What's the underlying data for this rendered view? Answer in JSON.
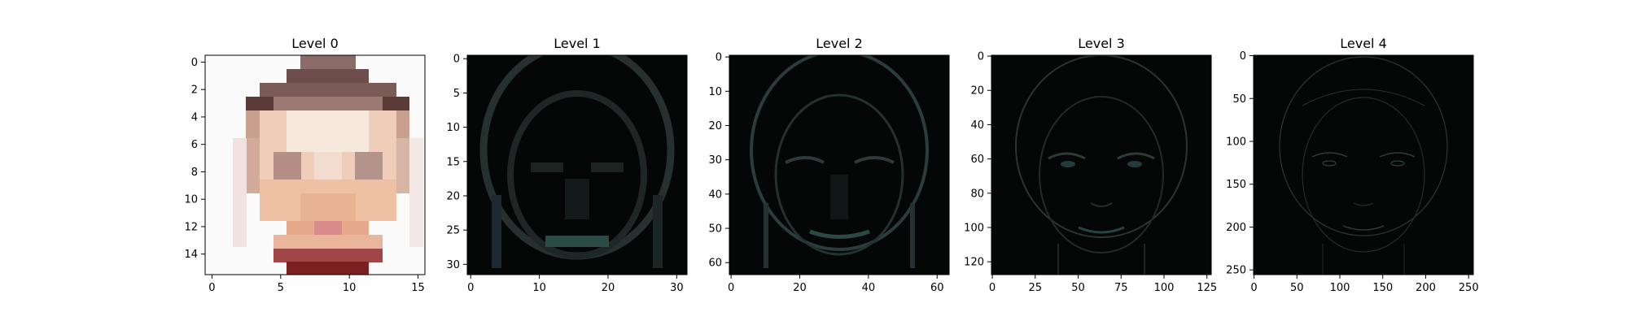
{
  "colors": {
    "background": "#ffffff",
    "axes_frame": "#000000",
    "tick_text": "#000000",
    "title_text": "#000000",
    "skin_light": "#f4e6dc",
    "skin_mid": "#e4b596",
    "hair_dark": "#5a3a37",
    "lip": "#d98b8c",
    "shirt": "#7a1f22",
    "edge_dark": "#050707",
    "edge_line": "#2a3d3c"
  },
  "chart_data": [
    {
      "type": "heatmap",
      "title": "Level 0",
      "image_size": [
        16,
        16
      ],
      "description_of_content": "low-resolution color face image",
      "xticks": [
        "0",
        "5",
        "10",
        "15"
      ],
      "yticks": [
        "0",
        "2",
        "4",
        "6",
        "8",
        "10",
        "12",
        "14"
      ],
      "xlim": [
        -0.5,
        15.5
      ],
      "ylim": [
        15.5,
        -0.5
      ]
    },
    {
      "type": "heatmap",
      "title": "Level 1",
      "image_size": [
        32,
        32
      ],
      "xticks": [
        "0",
        "10",
        "20",
        "30"
      ],
      "yticks": [
        "0",
        "5",
        "10",
        "15",
        "20",
        "25",
        "30"
      ],
      "xlim": [
        -0.5,
        31.5
      ],
      "ylim": [
        31.5,
        -0.5
      ]
    },
    {
      "type": "heatmap",
      "title": "Level 2",
      "image_size": [
        64,
        64
      ],
      "xticks": [
        "0",
        "20",
        "40",
        "60"
      ],
      "yticks": [
        "0",
        "10",
        "20",
        "30",
        "40",
        "50",
        "60"
      ],
      "xlim": [
        -0.5,
        63.5
      ],
      "ylim": [
        63.5,
        -0.5
      ]
    },
    {
      "type": "heatmap",
      "title": "Level 3",
      "image_size": [
        128,
        128
      ],
      "xticks": [
        "0",
        "25",
        "50",
        "75",
        "100",
        "125"
      ],
      "yticks": [
        "0",
        "20",
        "40",
        "60",
        "80",
        "100",
        "120"
      ],
      "xlim": [
        -0.5,
        127.5
      ],
      "ylim": [
        127.5,
        -0.5
      ]
    },
    {
      "type": "heatmap",
      "title": "Level 4",
      "image_size": [
        256,
        256
      ],
      "xticks": [
        "0",
        "50",
        "100",
        "150",
        "200",
        "250"
      ],
      "yticks": [
        "0",
        "50",
        "100",
        "150",
        "200",
        "250"
      ],
      "xlim": [
        -0.5,
        255.5
      ],
      "ylim": [
        255.5,
        -0.5
      ]
    }
  ]
}
